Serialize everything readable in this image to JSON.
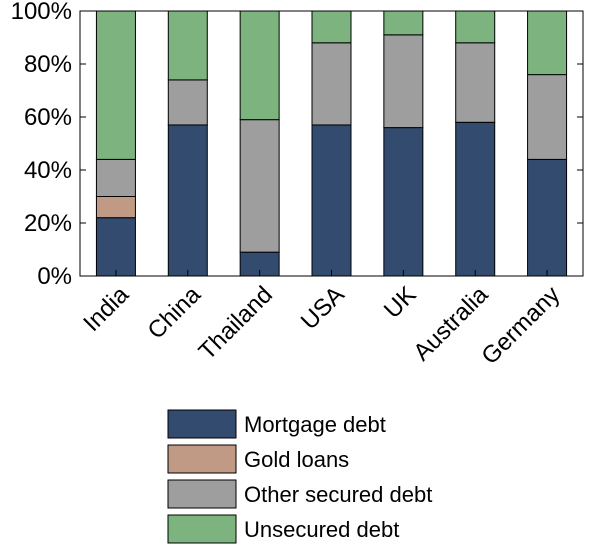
{
  "chart_data": {
    "type": "bar",
    "stacked": true,
    "categories": [
      "India",
      "China",
      "Thailand",
      "USA",
      "UK",
      "Australia",
      "Germany"
    ],
    "series": [
      {
        "name": "Mortgage debt",
        "color": "#334b6e",
        "values": [
          22,
          57,
          9,
          57,
          56,
          58,
          44
        ]
      },
      {
        "name": "Gold loans",
        "color": "#c09a84",
        "values": [
          8,
          0,
          0,
          0,
          0,
          0,
          0
        ]
      },
      {
        "name": "Other secured debt",
        "color": "#9e9e9e",
        "values": [
          14,
          17,
          50,
          31,
          35,
          30,
          32
        ]
      },
      {
        "name": "Unsecured debt",
        "color": "#7db37f",
        "values": [
          56,
          26,
          41,
          12,
          9,
          12,
          24
        ]
      }
    ],
    "yticks": [
      "0%",
      "20%",
      "40%",
      "60%",
      "80%",
      "100%"
    ],
    "ylim": [
      0,
      100
    ],
    "grid": false,
    "legend": "bottom"
  }
}
